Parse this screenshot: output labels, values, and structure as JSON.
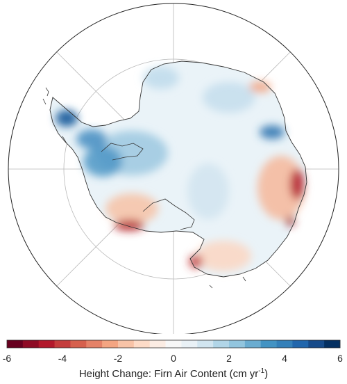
{
  "colorbar": {
    "title_main": "Height Change: Firn Air Content (cm yr",
    "title_exp": "-1",
    "title_close": ")",
    "min": -6,
    "max": 6,
    "tick_values": [
      -6,
      -4,
      -2,
      0,
      2,
      4,
      6
    ],
    "tick_labels": [
      "-6",
      "-4",
      "-2",
      "0",
      "2",
      "4",
      "6"
    ],
    "colors": [
      "#67001f",
      "#8e0b25",
      "#b2182b",
      "#c43c3c",
      "#d6604d",
      "#e58268",
      "#f4a582",
      "#f8c3a7",
      "#fddbc7",
      "#fbece3",
      "#f7f7f7",
      "#e9f1f6",
      "#d1e5f0",
      "#b1d5e7",
      "#92c5de",
      "#6aacd0",
      "#4393c3",
      "#3480b9",
      "#2166ac",
      "#174b8a",
      "#053061"
    ]
  },
  "map": {
    "projection": "south-polar-stereographic",
    "graticule": "on"
  }
}
